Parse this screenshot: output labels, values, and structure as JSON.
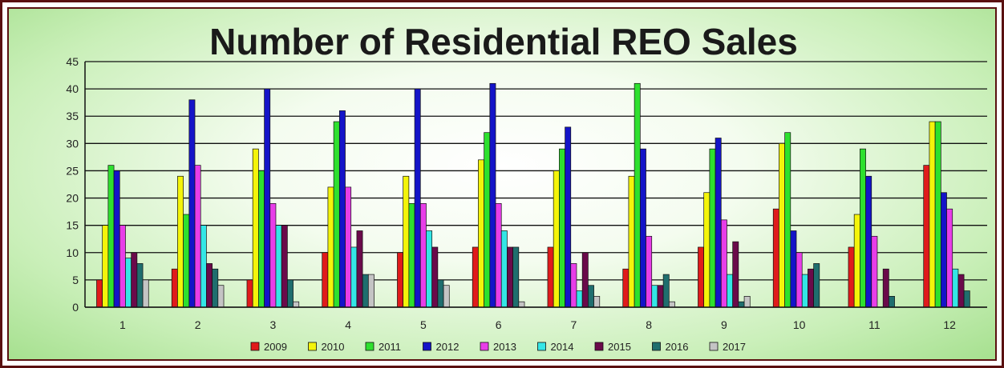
{
  "chart_data": {
    "type": "bar",
    "title": "Number of Residential REO Sales",
    "xlabel": "",
    "ylabel": "",
    "ylim": [
      0,
      45
    ],
    "yticks": [
      0,
      5,
      10,
      15,
      20,
      25,
      30,
      35,
      40,
      45
    ],
    "grid": true,
    "legend_position": "bottom",
    "categories": [
      "1",
      "2",
      "3",
      "4",
      "5",
      "6",
      "7",
      "8",
      "9",
      "10",
      "11",
      "12"
    ],
    "series": [
      {
        "name": "2009",
        "color": "#e01b1b",
        "values": [
          5,
          7,
          5,
          10,
          10,
          11,
          11,
          7,
          11,
          18,
          11,
          26
        ]
      },
      {
        "name": "2010",
        "color": "#f4f40a",
        "values": [
          15,
          24,
          29,
          22,
          24,
          27,
          25,
          24,
          21,
          30,
          17,
          34
        ]
      },
      {
        "name": "2011",
        "color": "#2ee02e",
        "values": [
          26,
          17,
          25,
          34,
          19,
          32,
          29,
          41,
          29,
          32,
          29,
          34
        ]
      },
      {
        "name": "2012",
        "color": "#1414c8",
        "values": [
          25,
          38,
          40,
          36,
          40,
          41,
          33,
          29,
          31,
          14,
          24,
          21
        ]
      },
      {
        "name": "2013",
        "color": "#e83ee8",
        "values": [
          15,
          26,
          19,
          22,
          19,
          19,
          8,
          13,
          16,
          10,
          13,
          18
        ]
      },
      {
        "name": "2014",
        "color": "#34e6e6",
        "values": [
          9,
          15,
          15,
          11,
          14,
          14,
          3,
          4,
          6,
          6,
          0,
          7
        ]
      },
      {
        "name": "2015",
        "color": "#6a0a4a",
        "values": [
          10,
          8,
          15,
          14,
          11,
          11,
          10,
          4,
          12,
          7,
          7,
          6
        ]
      },
      {
        "name": "2016",
        "color": "#1f6e6e",
        "values": [
          8,
          7,
          5,
          6,
          5,
          11,
          4,
          6,
          1,
          8,
          2,
          3
        ]
      },
      {
        "name": "2017",
        "color": "#c4c4c4",
        "values": [
          5,
          4,
          1,
          6,
          4,
          1,
          2,
          1,
          2,
          0,
          0,
          0
        ]
      }
    ]
  }
}
